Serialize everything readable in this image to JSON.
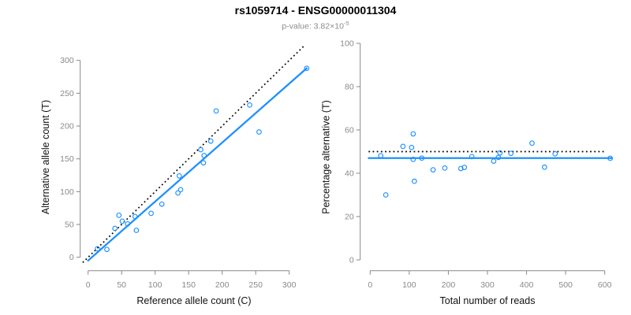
{
  "header": {
    "title": "rs1059714 - ENSG00000011304",
    "subtitle_base": "p-value: 3.82×10",
    "subtitle_exponent": "-5"
  },
  "chart_data": [
    {
      "type": "scatter",
      "name": "allele-count-scatter",
      "xlabel": "Reference allele count (C)",
      "ylabel": "Alternative allele count (T)",
      "xticks": [
        0,
        50,
        100,
        150,
        200,
        250,
        300
      ],
      "yticks": [
        0,
        50,
        100,
        150,
        200,
        250,
        300
      ],
      "xlim": [
        0,
        330
      ],
      "ylim": [
        0,
        325
      ],
      "grid": false,
      "point_color": "#1E90FF",
      "points": [
        [
          14,
          13
        ],
        [
          28,
          12
        ],
        [
          40,
          44
        ],
        [
          46,
          64
        ],
        [
          51,
          55
        ],
        [
          59,
          51
        ],
        [
          70,
          62
        ],
        [
          72,
          41
        ],
        [
          94,
          67
        ],
        [
          110,
          81
        ],
        [
          134,
          98
        ],
        [
          138,
          103
        ],
        [
          136,
          124
        ],
        [
          172,
          144
        ],
        [
          173,
          155
        ],
        [
          168,
          164
        ],
        [
          183,
          177
        ],
        [
          191,
          223
        ],
        [
          255,
          191
        ],
        [
          241,
          232
        ],
        [
          326,
          288
        ]
      ],
      "lines": [
        {
          "name": "identity-line",
          "style": "dotted",
          "color": "#000000",
          "x1": -8,
          "y1": -8,
          "x2": 322,
          "y2": 322
        },
        {
          "name": "fit-line",
          "style": "solid",
          "color": "#1E90FF",
          "x1": 0,
          "y1": -5,
          "x2": 326,
          "y2": 288
        }
      ]
    },
    {
      "type": "scatter",
      "name": "percentage-scatter",
      "xlabel": "Total number of reads",
      "ylabel": "Percentage alternative (T)",
      "xticks": [
        0,
        100,
        200,
        300,
        400,
        500,
        600
      ],
      "yticks": [
        0,
        20,
        40,
        60,
        80,
        100
      ],
      "xlim": [
        0,
        620
      ],
      "ylim": [
        0,
        100
      ],
      "grid": false,
      "point_color": "#1E90FF",
      "points": [
        [
          27,
          48.1
        ],
        [
          40,
          30.0
        ],
        [
          84,
          52.4
        ],
        [
          110,
          58.2
        ],
        [
          106,
          51.9
        ],
        [
          110,
          46.4
        ],
        [
          132,
          47.0
        ],
        [
          113,
          36.3
        ],
        [
          161,
          41.6
        ],
        [
          191,
          42.4
        ],
        [
          232,
          42.2
        ],
        [
          241,
          42.7
        ],
        [
          260,
          47.7
        ],
        [
          316,
          45.6
        ],
        [
          328,
          47.3
        ],
        [
          332,
          49.4
        ],
        [
          360,
          49.2
        ],
        [
          414,
          53.9
        ],
        [
          446,
          42.8
        ],
        [
          473,
          49.0
        ],
        [
          614,
          46.9
        ]
      ],
      "lines": [
        {
          "name": "expected-50pct-line",
          "style": "dotted",
          "color": "#000000",
          "x1": -4,
          "y1": 50,
          "x2": 600,
          "y2": 50
        },
        {
          "name": "mean-percentage-line",
          "style": "solid",
          "color": "#1E90FF",
          "x1": -4,
          "y1": 47,
          "x2": 619,
          "y2": 47
        }
      ]
    }
  ]
}
